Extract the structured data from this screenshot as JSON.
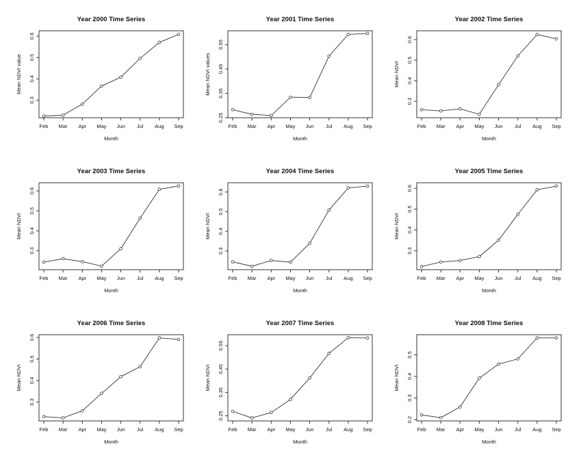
{
  "colors": {
    "line": "#333333",
    "frame": "#333333",
    "background": "#ffffff"
  },
  "chart_data": [
    {
      "type": "line",
      "title": "Year 2000 Time Series",
      "xlabel": "Month",
      "ylabel": "Mean NDVI value",
      "categories": [
        "Feb",
        "Mar",
        "Apr",
        "May",
        "Jun",
        "Jul",
        "Aug",
        "Sep"
      ],
      "values": [
        0.226,
        0.23,
        0.282,
        0.366,
        0.408,
        0.496,
        0.571,
        0.608
      ],
      "ylim": [
        0.218,
        0.625
      ],
      "yticks": [
        0.3,
        0.4,
        0.5,
        0.6
      ],
      "ytick_labels": [
        "0.3",
        "0.4",
        "0.5",
        "0.6"
      ]
    },
    {
      "type": "line",
      "title": "Year 2001 Time Series",
      "xlabel": "Month",
      "ylabel": "Mean NDVI values",
      "categories": [
        "Feb",
        "Mar",
        "Apr",
        "May",
        "Jun",
        "Jul",
        "Aug",
        "Sep"
      ],
      "values": [
        0.283,
        0.264,
        0.259,
        0.334,
        0.333,
        0.503,
        0.592,
        0.596
      ],
      "ylim": [
        0.25,
        0.607
      ],
      "yticks": [
        0.25,
        0.35,
        0.45,
        0.55
      ],
      "ytick_labels": [
        "0.25",
        "0.35",
        "0.45",
        "0.55"
      ]
    },
    {
      "type": "line",
      "title": "Year 2002 Time Series",
      "xlabel": "Month",
      "ylabel": "Mean NDVI",
      "categories": [
        "Feb",
        "Mar",
        "Apr",
        "May",
        "Jun",
        "Jul",
        "Aug",
        "Sep"
      ],
      "values": [
        0.259,
        0.253,
        0.263,
        0.237,
        0.381,
        0.521,
        0.625,
        0.604
      ],
      "ylim": [
        0.22,
        0.643
      ],
      "yticks": [
        0.3,
        0.4,
        0.5,
        0.6
      ],
      "ytick_labels": [
        "0.3",
        "0.4",
        "0.5",
        "0.6"
      ]
    },
    {
      "type": "line",
      "title": "Year 2003 Time Series",
      "xlabel": "Month",
      "ylabel": "Mean NDVI",
      "categories": [
        "Feb",
        "Mar",
        "Apr",
        "May",
        "Jun",
        "Jul",
        "Aug",
        "Sep"
      ],
      "values": [
        0.243,
        0.26,
        0.245,
        0.223,
        0.31,
        0.463,
        0.608,
        0.625
      ],
      "ylim": [
        0.205,
        0.641
      ],
      "yticks": [
        0.3,
        0.4,
        0.5,
        0.6
      ],
      "ytick_labels": [
        "0.3",
        "0.4",
        "0.5",
        "0.6"
      ]
    },
    {
      "type": "line",
      "title": "Year 2004 Time Series",
      "xlabel": "Month",
      "ylabel": "Mean NDVI",
      "categories": [
        "Feb",
        "Mar",
        "Apr",
        "May",
        "Jun",
        "Jul",
        "Aug",
        "Sep"
      ],
      "values": [
        0.245,
        0.222,
        0.252,
        0.243,
        0.339,
        0.508,
        0.621,
        0.63
      ],
      "ylim": [
        0.205,
        0.647
      ],
      "yticks": [
        0.3,
        0.4,
        0.5,
        0.6
      ],
      "ytick_labels": [
        "0.3",
        "0.4",
        "0.5",
        "0.6"
      ]
    },
    {
      "type": "line",
      "title": "Year 2005 Time Series",
      "xlabel": "Month",
      "ylabel": "Mean NDVI",
      "categories": [
        "Feb",
        "Mar",
        "Apr",
        "May",
        "Jun",
        "Jul",
        "Aug",
        "Sep"
      ],
      "values": [
        0.224,
        0.246,
        0.253,
        0.272,
        0.351,
        0.475,
        0.593,
        0.611
      ],
      "ylim": [
        0.209,
        0.627
      ],
      "yticks": [
        0.3,
        0.4,
        0.5,
        0.6
      ],
      "ytick_labels": [
        "0.3",
        "0.4",
        "0.5",
        "0.6"
      ]
    },
    {
      "type": "line",
      "title": "Year 2006 Time Series",
      "xlabel": "Month",
      "ylabel": "Mean NDVI",
      "categories": [
        "Feb",
        "Mar",
        "Apr",
        "May",
        "Jun",
        "Jul",
        "Aug",
        "Sep"
      ],
      "values": [
        0.232,
        0.226,
        0.259,
        0.34,
        0.418,
        0.464,
        0.598,
        0.591
      ],
      "ylim": [
        0.212,
        0.613
      ],
      "yticks": [
        0.3,
        0.4,
        0.5,
        0.6
      ],
      "ytick_labels": [
        "0.3",
        "0.4",
        "0.5",
        "0.6"
      ]
    },
    {
      "type": "line",
      "title": "Year 2007 Time Series",
      "xlabel": "Month",
      "ylabel": "Mean NDVI",
      "categories": [
        "Feb",
        "Mar",
        "Apr",
        "May",
        "Jun",
        "Jul",
        "Aug",
        "Sep"
      ],
      "values": [
        0.269,
        0.241,
        0.264,
        0.32,
        0.412,
        0.517,
        0.584,
        0.583
      ],
      "ylim": [
        0.228,
        0.597
      ],
      "yticks": [
        0.25,
        0.35,
        0.45,
        0.55
      ],
      "ytick_labels": [
        "0.25",
        "0.35",
        "0.45",
        "0.55"
      ]
    },
    {
      "type": "line",
      "title": "Year 2008 Time Series",
      "xlabel": "Month",
      "ylabel": "Mean NDVI",
      "categories": [
        "Feb",
        "Mar",
        "Apr",
        "May",
        "Jun",
        "Jul",
        "Aug",
        "Sep"
      ],
      "values": [
        0.222,
        0.209,
        0.259,
        0.392,
        0.457,
        0.481,
        0.578,
        0.578
      ],
      "ylim": [
        0.194,
        0.593
      ],
      "yticks": [
        0.2,
        0.3,
        0.4,
        0.5
      ],
      "ytick_labels": [
        "0.2",
        "0.3",
        "0.4",
        "0.5"
      ]
    }
  ]
}
